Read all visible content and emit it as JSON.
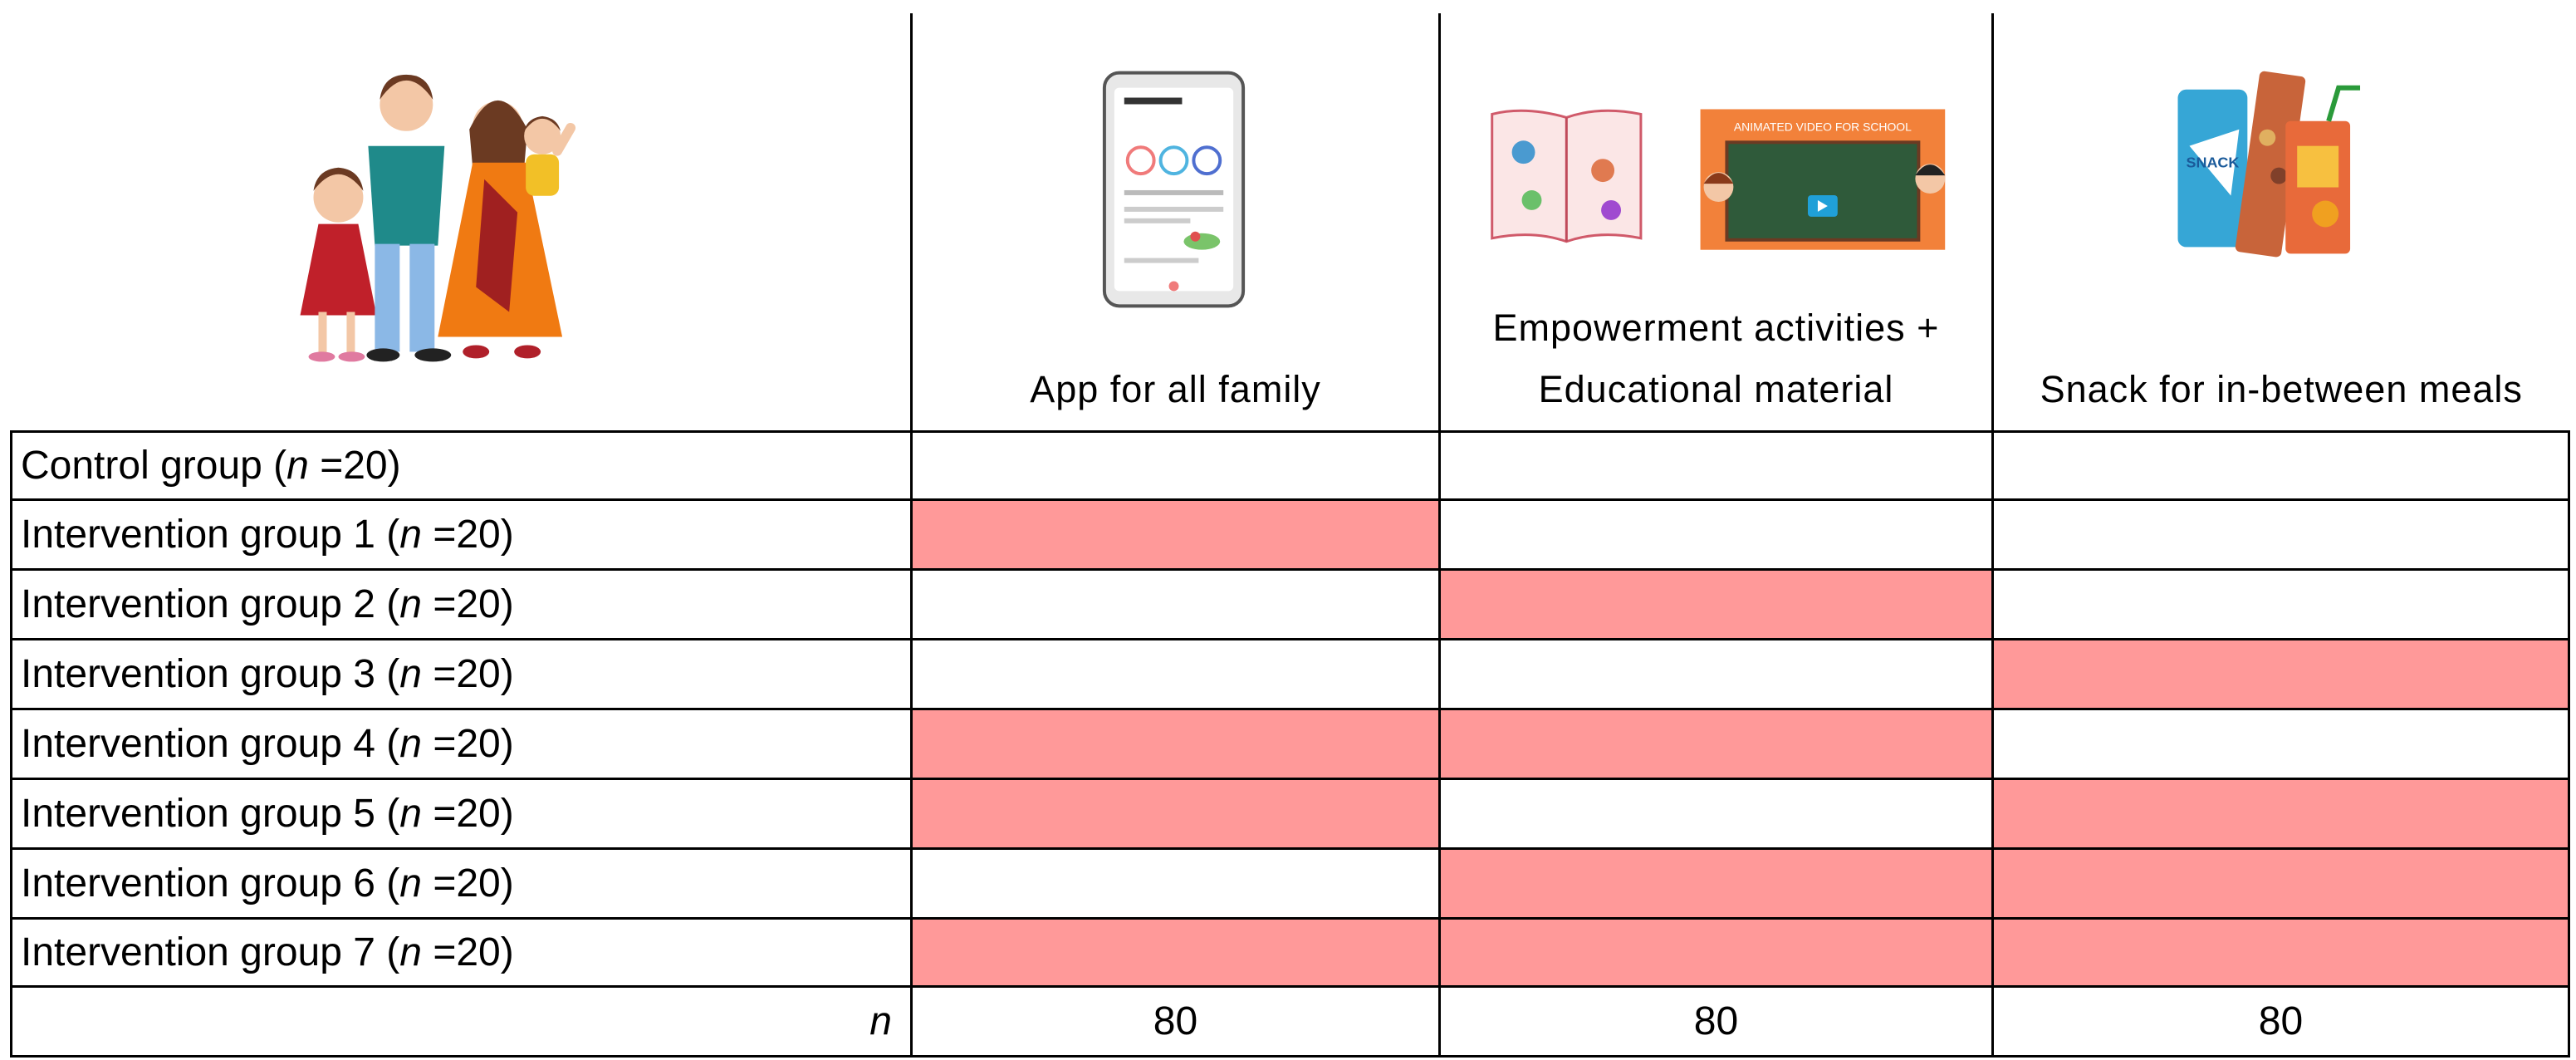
{
  "header": {
    "columns": [
      {
        "label": "App for all family",
        "icon": "smartphone-dashboard-icon"
      },
      {
        "label_lines": [
          "Empowerment activities +",
          "Educational material"
        ],
        "icon": "book-and-chalkboard-icon",
        "chalkboard_text": "ANIMATED VIDEO FOR SCHOOL"
      },
      {
        "label": "Snack for in-between meals",
        "icon": "snack-packages-icon",
        "snack_text": "SNACK"
      }
    ],
    "family_icon": "family-illustration-icon"
  },
  "rows": [
    {
      "label": "Control group (",
      "n": "n",
      "eq": " =20)",
      "cells": [
        false,
        false,
        false
      ]
    },
    {
      "label": "Intervention group 1 (",
      "n": "n",
      "eq": " =20)",
      "cells": [
        true,
        false,
        false
      ]
    },
    {
      "label": "Intervention group 2 (",
      "n": "n",
      "eq": " =20)",
      "cells": [
        false,
        true,
        false
      ]
    },
    {
      "label": "Intervention group 3 (",
      "n": "n",
      "eq": " =20)",
      "cells": [
        false,
        false,
        true
      ]
    },
    {
      "label": "Intervention group 4 (",
      "n": "n",
      "eq": " =20)",
      "cells": [
        true,
        true,
        false
      ]
    },
    {
      "label": "Intervention group 5 (",
      "n": "n",
      "eq": " =20)",
      "cells": [
        true,
        false,
        true
      ]
    },
    {
      "label": "Intervention group 6 (",
      "n": "n",
      "eq": " =20)",
      "cells": [
        false,
        true,
        true
      ]
    },
    {
      "label": "Intervention group 7 (",
      "n": "n",
      "eq": " =20)",
      "cells": [
        true,
        true,
        true
      ]
    }
  ],
  "totals": {
    "label": "n",
    "values": [
      "80",
      "80",
      "80"
    ]
  },
  "colors": {
    "highlight": "#ff9999",
    "border": "#000000"
  }
}
